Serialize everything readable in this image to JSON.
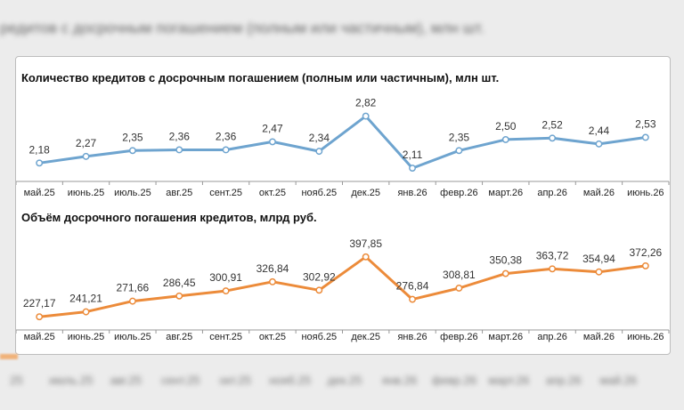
{
  "background": {
    "title": "редитов с досрочным погашением (полным или частичным), млн шт.",
    "axis_labels": [
      "25",
      "июль.25",
      "авг.25",
      "сент.25",
      "окт.25",
      "нояб.25",
      "дек.25",
      "янв.26",
      "февр.26",
      "март.26",
      "апр.26",
      "май.26"
    ]
  },
  "colors": {
    "series1": "#6ea4cf",
    "series2": "#ec8b3a"
  },
  "chart_data": [
    {
      "type": "line",
      "title": "Количество кредитов с досрочным погашением (полным или частичным), млн шт.",
      "categories": [
        "май.25",
        "июнь.25",
        "июль.25",
        "авг.25",
        "сент.25",
        "окт.25",
        "нояб.25",
        "дек.25",
        "янв.26",
        "февр.26",
        "март.26",
        "апр.26",
        "май.26",
        "июнь.26"
      ],
      "values": [
        2.18,
        2.27,
        2.35,
        2.36,
        2.36,
        2.47,
        2.34,
        2.82,
        2.11,
        2.35,
        2.5,
        2.52,
        2.44,
        2.53
      ],
      "labels": [
        "2,18",
        "2,27",
        "2,35",
        "2,36",
        "2,36",
        "2,47",
        "2,34",
        "2,82",
        "2,11",
        "2,35",
        "2,50",
        "2,52",
        "2,44",
        "2,53"
      ],
      "ylim": [
        2.05,
        2.9
      ],
      "grid": false,
      "legend": "none"
    },
    {
      "type": "line",
      "title": "Объём досрочного погашения кредитов, млрд руб.",
      "categories": [
        "май.25",
        "июнь.25",
        "июль.25",
        "авг.25",
        "сент.25",
        "окт.25",
        "нояб.25",
        "дек.25",
        "янв.26",
        "февр.26",
        "март.26",
        "апр.26",
        "май.26",
        "июнь.26"
      ],
      "values": [
        227.17,
        241.21,
        271.66,
        286.45,
        300.91,
        326.84,
        302.92,
        397.85,
        276.84,
        308.81,
        350.38,
        363.72,
        354.94,
        372.26
      ],
      "labels": [
        "227,17",
        "241,21",
        "271,66",
        "286,45",
        "300,91",
        "326,84",
        "302,92",
        "397,85",
        "276,84",
        "308,81",
        "350,38",
        "363,72",
        "354,94",
        "372,26"
      ],
      "ylim": [
        220,
        405
      ],
      "grid": false,
      "legend": "none"
    }
  ]
}
